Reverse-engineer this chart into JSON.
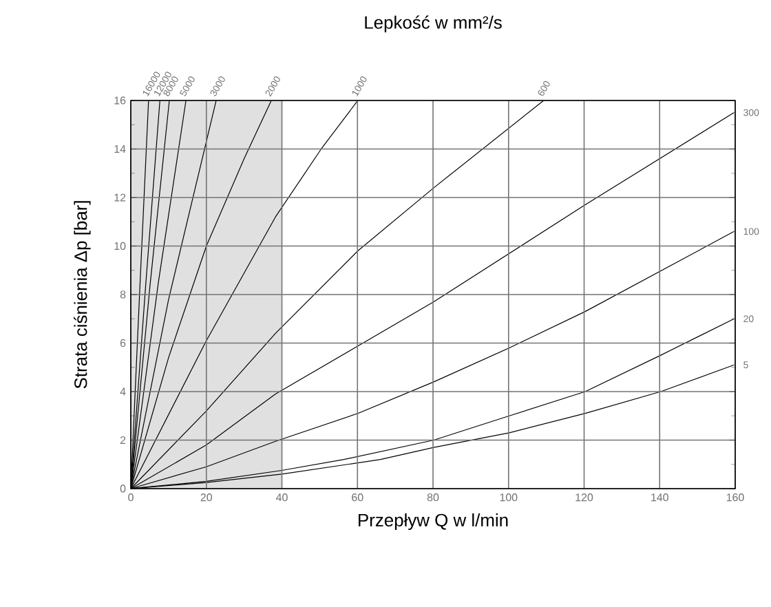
{
  "chart_data": {
    "type": "line",
    "title": "Lepkość w mm²/s",
    "xlabel": "Przepływ Q w l/min",
    "ylabel": "Strata ciśnienia Δp [bar]",
    "legend": "right",
    "xlim": [
      0,
      160
    ],
    "ylim": [
      0,
      16
    ],
    "xticks": [
      0,
      20,
      40,
      60,
      80,
      100,
      120,
      140,
      160
    ],
    "yticks": [
      0,
      2,
      4,
      6,
      8,
      10,
      12,
      14,
      16
    ],
    "grid": true,
    "bands": [
      {
        "axis": "x",
        "from": 0,
        "to": 40,
        "color": "#e0e0e0"
      }
    ],
    "series": [
      {
        "name": "16000",
        "color": "#000000",
        "x": [
          0,
          2.4,
          4.7
        ],
        "values": [
          0,
          8.3,
          16
        ]
      },
      {
        "name": "12000",
        "color": "#000000",
        "x": [
          0,
          3.9,
          7.7
        ],
        "values": [
          0,
          8.3,
          16
        ]
      },
      {
        "name": "8000",
        "color": "#000000",
        "x": [
          0,
          5.1,
          10.2
        ],
        "values": [
          0,
          8.4,
          16
        ]
      },
      {
        "name": "5000",
        "color": "#000000",
        "x": [
          0,
          7.3,
          14.6
        ],
        "values": [
          0,
          8.5,
          16
        ]
      },
      {
        "name": "3000",
        "color": "#000000",
        "x": [
          0,
          10,
          22.6
        ],
        "values": [
          0,
          7.8,
          16
        ]
      },
      {
        "name": "2000",
        "color": "#000000",
        "x": [
          0,
          10,
          20,
          30,
          37.2
        ],
        "values": [
          0,
          5.4,
          10,
          13.6,
          16
        ]
      },
      {
        "name": "1000",
        "color": "#000000",
        "x": [
          0,
          20,
          38.3,
          50.4,
          60.1
        ],
        "values": [
          0,
          6.1,
          11.2,
          14,
          16
        ]
      },
      {
        "name": "600",
        "color": "#000000",
        "x": [
          0,
          20,
          38.3,
          60.1,
          80.2,
          109.3
        ],
        "values": [
          0,
          3.2,
          6.4,
          9.8,
          12.4,
          16
        ]
      },
      {
        "name": "300",
        "color": "#000000",
        "x": [
          0,
          20,
          38.3,
          80.2,
          120.3,
          159.7
        ],
        "values": [
          0,
          1.8,
          3.9,
          7.7,
          11.7,
          15.5
        ]
      },
      {
        "name": "100",
        "color": "#000000",
        "x": [
          0,
          20,
          38.3,
          60.1,
          80.2,
          100.2,
          120.3,
          159.7
        ],
        "values": [
          0,
          0.9,
          1.95,
          3.1,
          4.4,
          5.8,
          7.3,
          10.6
        ]
      },
      {
        "name": "20",
        "color": "#000000",
        "x": [
          0,
          20,
          40,
          56.4,
          80.2,
          100.2,
          120.3,
          140.3,
          159.7
        ],
        "values": [
          0,
          0.3,
          0.75,
          1.2,
          2,
          3,
          4,
          5.5,
          7
        ]
      },
      {
        "name": "5",
        "color": "#000000",
        "x": [
          0,
          20,
          40,
          66.1,
          80.2,
          100.2,
          120.3,
          140.3,
          159.7
        ],
        "values": [
          0,
          0.25,
          0.6,
          1.2,
          1.7,
          2.3,
          3.1,
          4,
          5.1
        ]
      }
    ]
  }
}
